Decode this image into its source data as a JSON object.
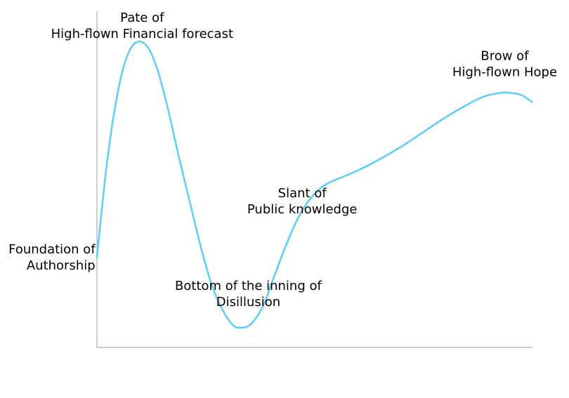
{
  "chart_data": {
    "type": "line",
    "title": "",
    "xlabel": "",
    "ylabel": "",
    "xlim": [
      0,
      1
    ],
    "ylim": [
      0,
      1
    ],
    "grid": false,
    "legend": "none",
    "axes": {
      "left_spine": true,
      "bottom_spine": true,
      "ticks": false
    },
    "series": [
      {
        "color": "#66ccf5",
        "points": [
          [
            0.0,
            0.28
          ],
          [
            0.01,
            0.45
          ],
          [
            0.02,
            0.6
          ],
          [
            0.032,
            0.74
          ],
          [
            0.046,
            0.86
          ],
          [
            0.06,
            0.93
          ],
          [
            0.072,
            0.955
          ],
          [
            0.084,
            0.955
          ],
          [
            0.097,
            0.93
          ],
          [
            0.113,
            0.86
          ],
          [
            0.13,
            0.75
          ],
          [
            0.15,
            0.6
          ],
          [
            0.17,
            0.46
          ],
          [
            0.19,
            0.32
          ],
          [
            0.21,
            0.2
          ],
          [
            0.23,
            0.12
          ],
          [
            0.25,
            0.07
          ],
          [
            0.266,
            0.062
          ],
          [
            0.284,
            0.075
          ],
          [
            0.305,
            0.13
          ],
          [
            0.325,
            0.22
          ],
          [
            0.345,
            0.31
          ],
          [
            0.365,
            0.39
          ],
          [
            0.385,
            0.45
          ],
          [
            0.405,
            0.49
          ],
          [
            0.425,
            0.515
          ],
          [
            0.45,
            0.533
          ],
          [
            0.48,
            0.555
          ],
          [
            0.52,
            0.59
          ],
          [
            0.56,
            0.63
          ],
          [
            0.6,
            0.675
          ],
          [
            0.64,
            0.72
          ],
          [
            0.68,
            0.76
          ],
          [
            0.71,
            0.785
          ],
          [
            0.74,
            0.797
          ],
          [
            0.76,
            0.797
          ],
          [
            0.78,
            0.79
          ],
          [
            0.8,
            0.768
          ]
        ]
      }
    ],
    "annotations": [
      {
        "id": "technology-trigger",
        "lines": [
          "Foundation of",
          "Authorship"
        ],
        "x": -0.003,
        "y": 0.295,
        "anchor": "end"
      },
      {
        "id": "peak-expectations",
        "lines": [
          "Pate of",
          "High-flown Financial forecast"
        ],
        "x": 0.083,
        "y": 1.02,
        "anchor": "middle"
      },
      {
        "id": "trough",
        "lines": [
          "Bottom of the inning of",
          "Disillusion"
        ],
        "x": 0.278,
        "y": 0.18,
        "anchor": "middle"
      },
      {
        "id": "slope",
        "lines": [
          "Slant of",
          "Public knowledge"
        ],
        "x": 0.377,
        "y": 0.47,
        "anchor": "middle"
      },
      {
        "id": "plateau",
        "lines": [
          "Brow of",
          "High-flown Hope"
        ],
        "x": 0.749,
        "y": 0.9,
        "anchor": "middle"
      }
    ]
  }
}
